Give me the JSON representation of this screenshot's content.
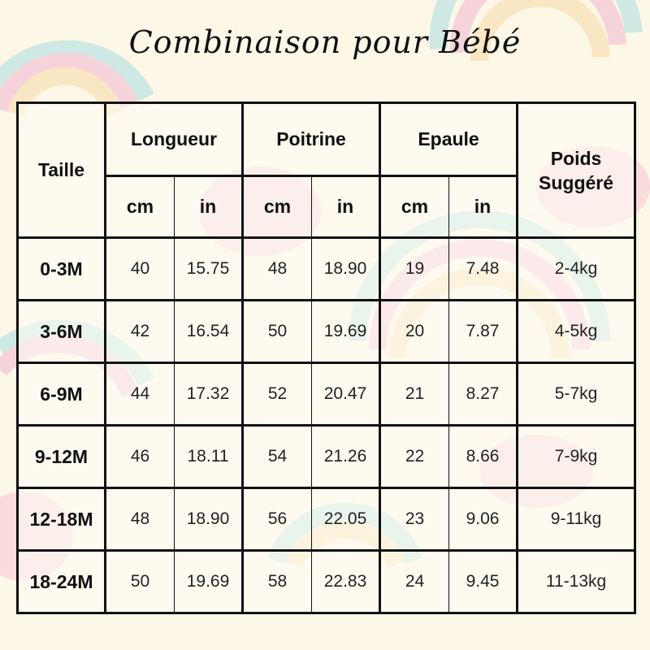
{
  "title": "Combinaison pour Bébé",
  "headers": {
    "size": "Taille",
    "length": "Longueur",
    "chest": "Poitrine",
    "shoulder": "Epaule",
    "weight": "Poids Suggéré",
    "cm": "cm",
    "in": "in"
  },
  "rows": [
    {
      "size": "0-3M",
      "length_cm": "40",
      "length_in": "15.75",
      "chest_cm": "48",
      "chest_in": "18.90",
      "shoulder_cm": "19",
      "shoulder_in": "7.48",
      "weight": "2-4kg"
    },
    {
      "size": "3-6M",
      "length_cm": "42",
      "length_in": "16.54",
      "chest_cm": "50",
      "chest_in": "19.69",
      "shoulder_cm": "20",
      "shoulder_in": "7.87",
      "weight": "4-5kg"
    },
    {
      "size": "6-9M",
      "length_cm": "44",
      "length_in": "17.32",
      "chest_cm": "52",
      "chest_in": "20.47",
      "shoulder_cm": "21",
      "shoulder_in": "8.27",
      "weight": "5-7kg"
    },
    {
      "size": "9-12M",
      "length_cm": "46",
      "length_in": "18.11",
      "chest_cm": "54",
      "chest_in": "21.26",
      "shoulder_cm": "22",
      "shoulder_in": "8.66",
      "weight": "7-9kg"
    },
    {
      "size": "12-18M",
      "length_cm": "48",
      "length_in": "18.90",
      "chest_cm": "56",
      "chest_in": "22.05",
      "shoulder_cm": "23",
      "shoulder_in": "9.06",
      "weight": "9-11kg"
    },
    {
      "size": "18-24M",
      "length_cm": "50",
      "length_in": "19.69",
      "chest_cm": "58",
      "chest_in": "22.83",
      "shoulder_cm": "24",
      "shoulder_in": "9.45",
      "weight": "11-13kg"
    }
  ],
  "colors": {
    "background": "#fdf7e8",
    "border": "#111111",
    "rainbow": [
      "#a8dce0",
      "#f2b6cf",
      "#f7d9a4"
    ],
    "cloud": "#f4b8cc"
  }
}
